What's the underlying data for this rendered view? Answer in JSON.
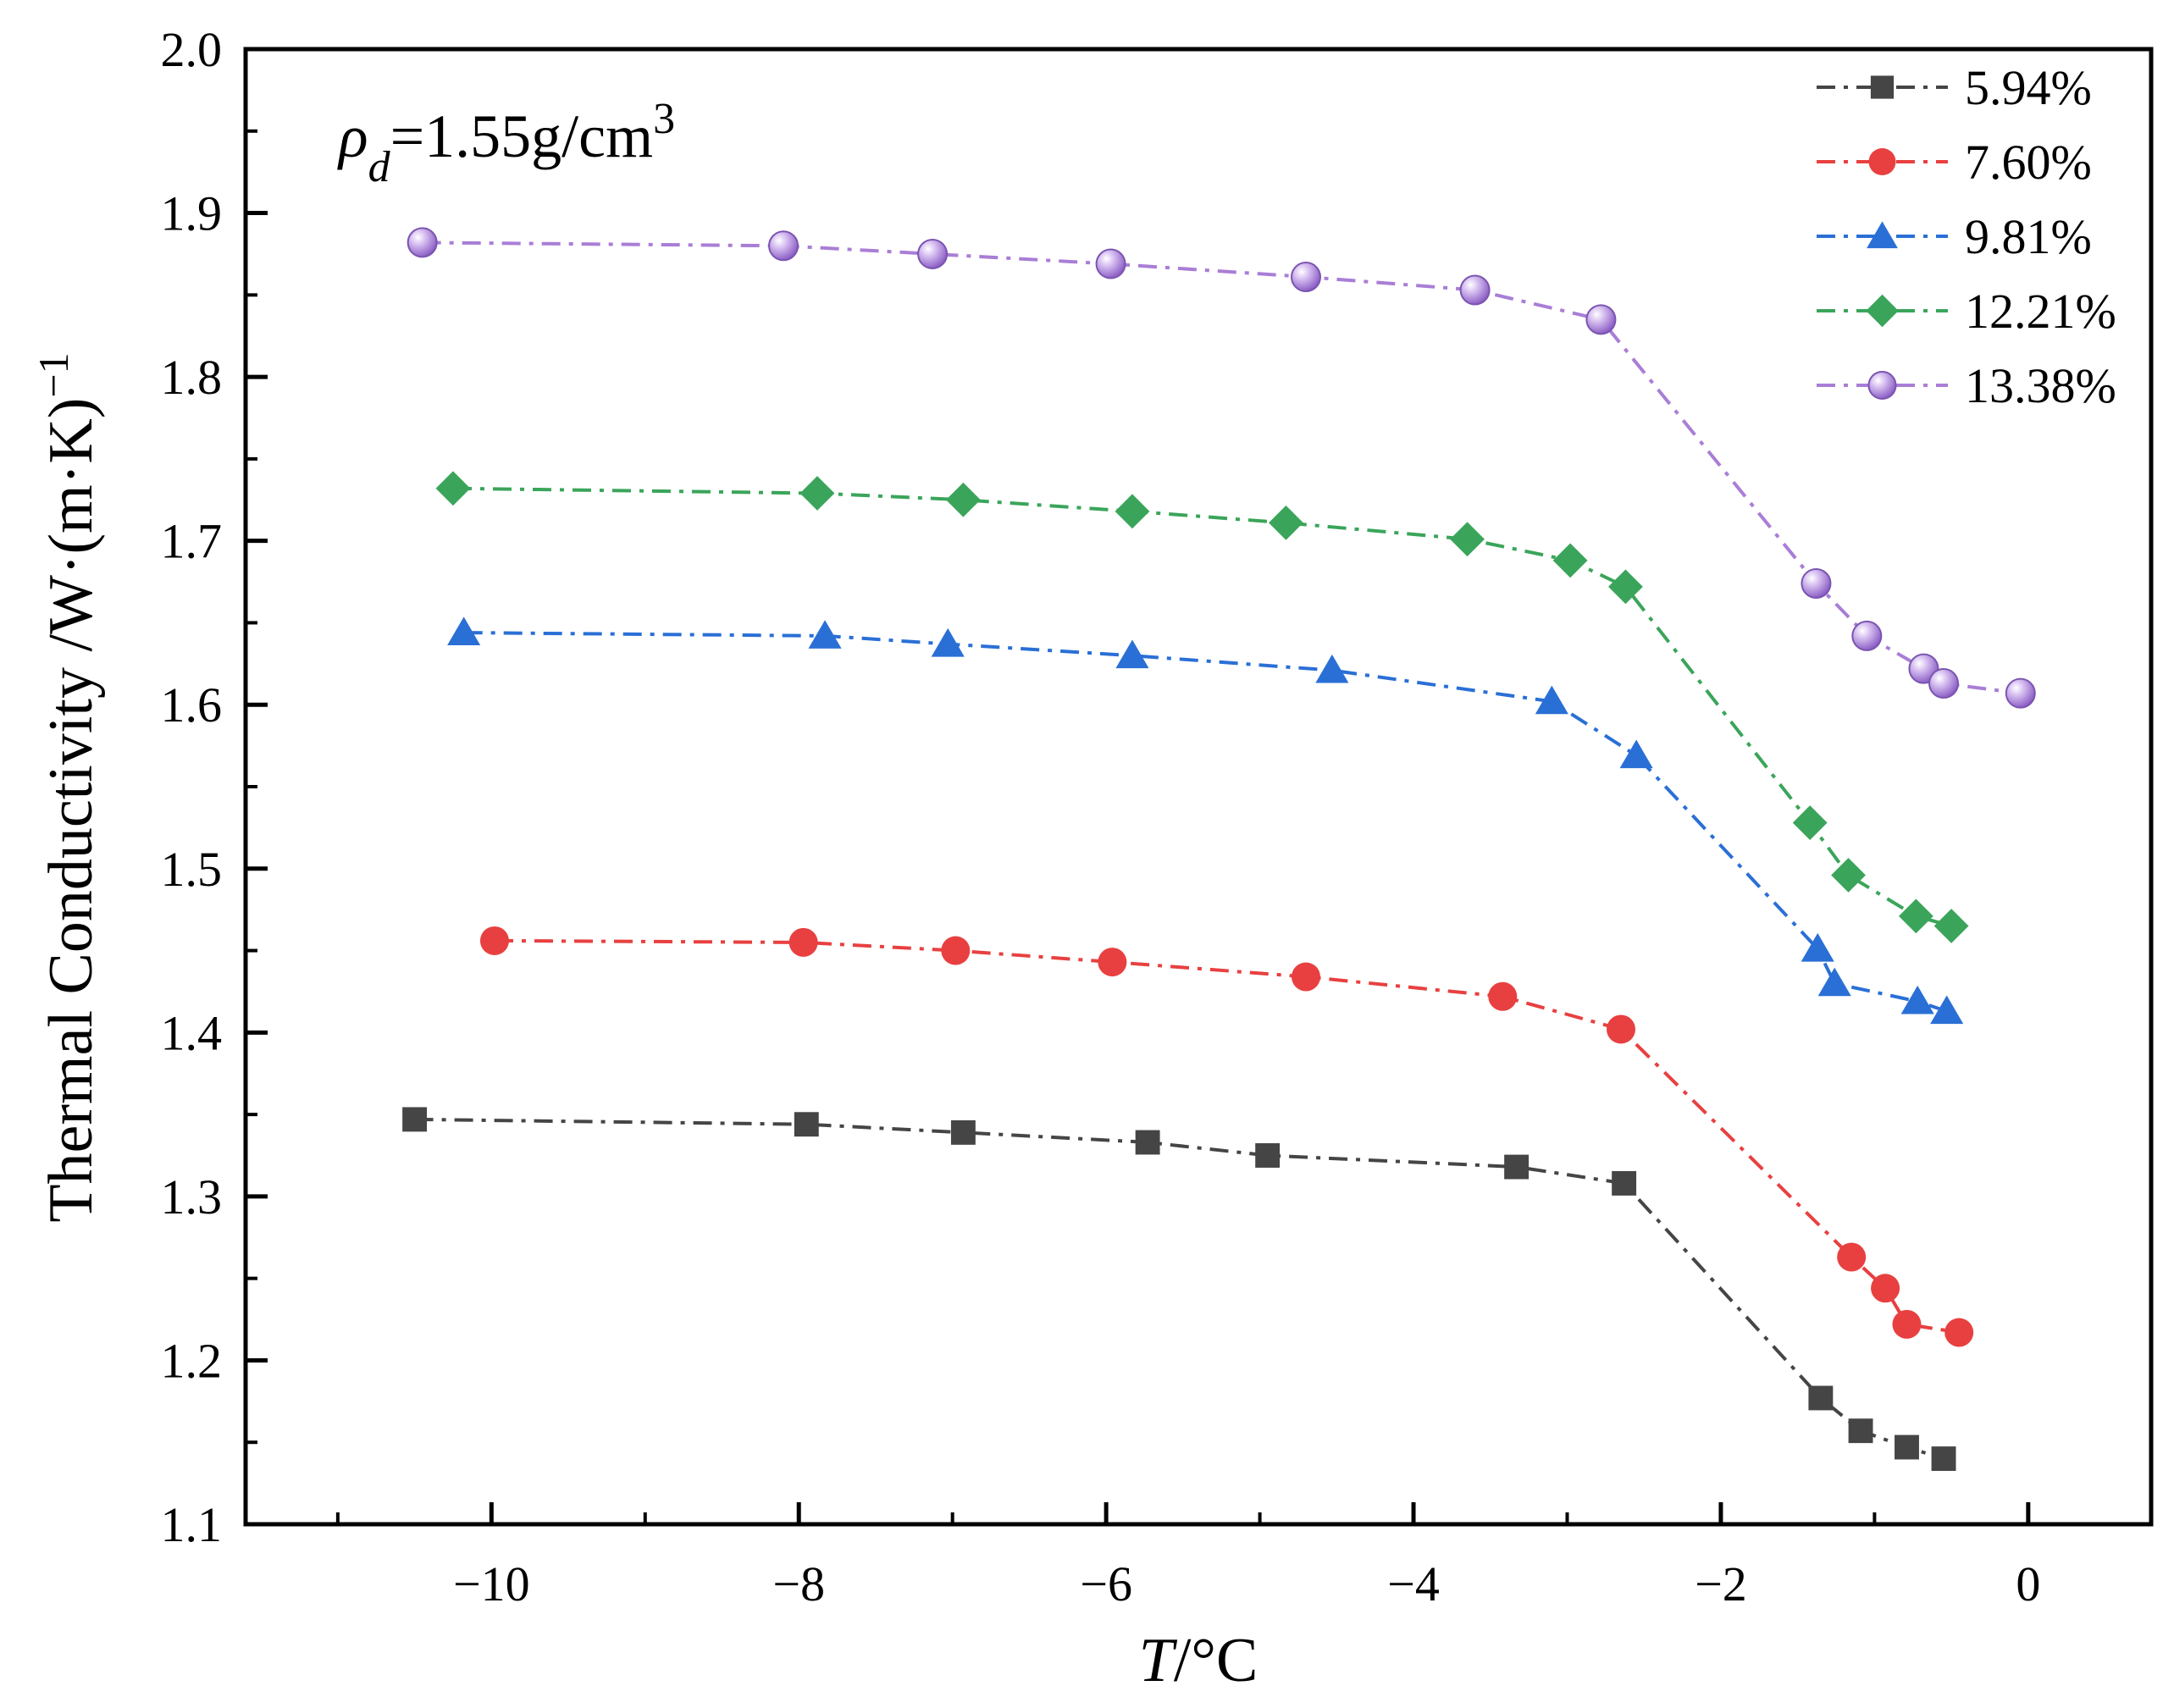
{
  "chart_data": {
    "type": "line",
    "title": "",
    "xlabel": {
      "var": "T",
      "unit": "/°C"
    },
    "ylabel": {
      "main": "Thermal Conductivity /W·(m·K)",
      "sup": "−1"
    },
    "annotation": {
      "sym": "ρ",
      "sub": "d",
      "main": "=1.55g/cm",
      "sup": "3"
    },
    "xlim": [
      -11.6,
      0.8
    ],
    "ylim": [
      1.1,
      2.0
    ],
    "xticks": [
      {
        "v": -10,
        "label": "−10"
      },
      {
        "v": -8,
        "label": "−8"
      },
      {
        "v": -6,
        "label": "−6"
      },
      {
        "v": -4,
        "label": "−4"
      },
      {
        "v": -2,
        "label": "−2"
      },
      {
        "v": 0,
        "label": "0"
      }
    ],
    "yticks": [
      {
        "v": 1.1,
        "label": "1.1"
      },
      {
        "v": 1.2,
        "label": "1.2"
      },
      {
        "v": 1.3,
        "label": "1.3"
      },
      {
        "v": 1.4,
        "label": "1.4"
      },
      {
        "v": 1.5,
        "label": "1.5"
      },
      {
        "v": 1.6,
        "label": "1.6"
      },
      {
        "v": 1.7,
        "label": "1.7"
      },
      {
        "v": 1.8,
        "label": "1.8"
      },
      {
        "v": 1.9,
        "label": "1.9"
      },
      {
        "v": 2.0,
        "label": "2.0"
      }
    ],
    "legend_position": "top-right",
    "series": [
      {
        "name": "5.94%",
        "color": "#454545",
        "marker": "square",
        "x": [
          -10.5,
          -7.95,
          -6.93,
          -5.73,
          -4.95,
          -3.33,
          -2.63,
          -1.35,
          -1.09,
          -0.79,
          -0.55
        ],
        "y": [
          1.347,
          1.344,
          1.339,
          1.333,
          1.325,
          1.318,
          1.308,
          1.177,
          1.157,
          1.147,
          1.14
        ]
      },
      {
        "name": "7.60%",
        "color": "#e84040",
        "marker": "circle",
        "x": [
          -9.98,
          -7.97,
          -6.98,
          -5.96,
          -4.7,
          -3.42,
          -2.65,
          -1.15,
          -0.93,
          -0.79,
          -0.45
        ],
        "y": [
          1.456,
          1.455,
          1.45,
          1.443,
          1.434,
          1.422,
          1.402,
          1.263,
          1.244,
          1.222,
          1.217
        ]
      },
      {
        "name": "9.81%",
        "color": "#2a6fd6",
        "marker": "triangle",
        "x": [
          -10.18,
          -7.83,
          -7.03,
          -5.83,
          -4.53,
          -3.1,
          -2.55,
          -1.37,
          -1.26,
          -0.72,
          -0.53
        ],
        "y": [
          1.644,
          1.642,
          1.637,
          1.63,
          1.621,
          1.602,
          1.569,
          1.451,
          1.43,
          1.419,
          1.413
        ]
      },
      {
        "name": "12.21%",
        "color": "#3aa55a",
        "marker": "diamond",
        "x": [
          -10.25,
          -7.88,
          -6.93,
          -5.83,
          -4.83,
          -3.65,
          -2.98,
          -2.62,
          -1.42,
          -1.17,
          -0.73,
          -0.5
        ],
        "y": [
          1.732,
          1.729,
          1.725,
          1.718,
          1.711,
          1.701,
          1.688,
          1.672,
          1.528,
          1.496,
          1.471,
          1.465
        ]
      },
      {
        "name": "13.38%",
        "color": "#a97ed6",
        "marker": "sphere",
        "x": [
          -10.45,
          -8.1,
          -7.13,
          -5.97,
          -4.7,
          -3.6,
          -2.78,
          -1.38,
          -1.05,
          -0.68,
          -0.55,
          -0.05
        ],
        "y": [
          1.882,
          1.88,
          1.875,
          1.869,
          1.861,
          1.853,
          1.835,
          1.674,
          1.642,
          1.622,
          1.613,
          1.607
        ]
      }
    ]
  }
}
